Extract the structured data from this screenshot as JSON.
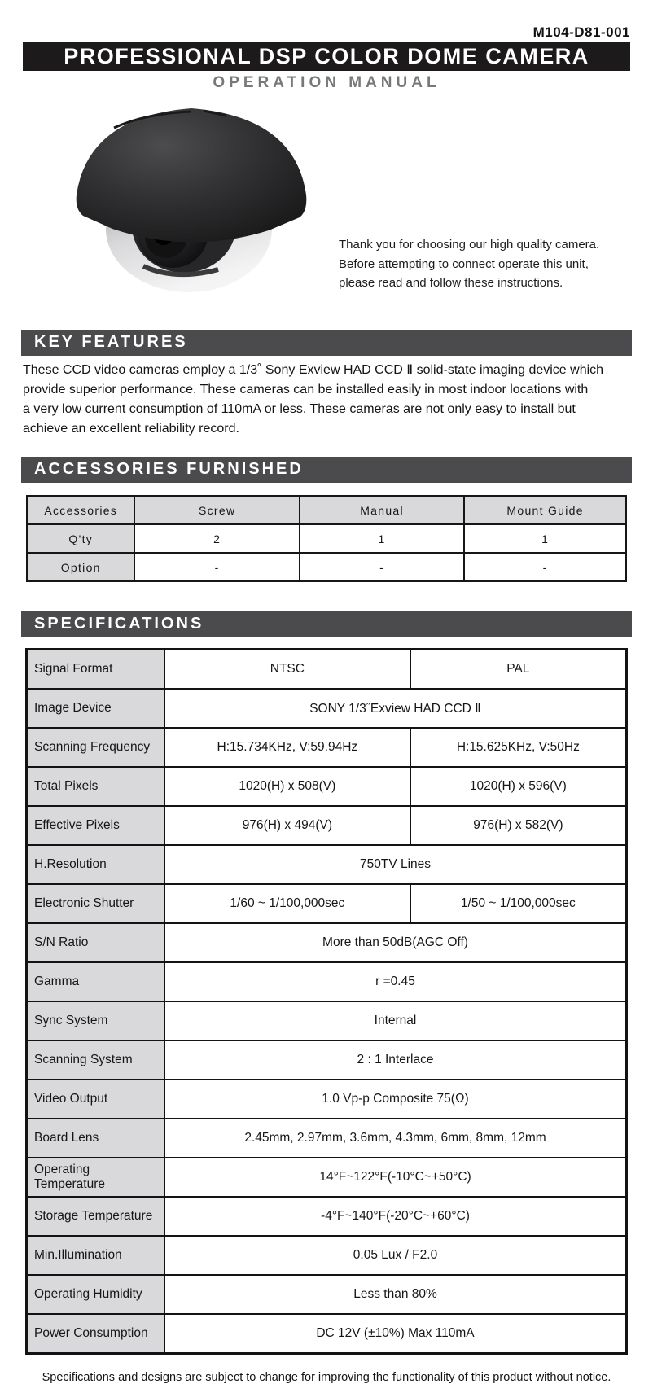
{
  "header": {
    "model_number": "M104-D81-001",
    "title": "PROFESSIONAL DSP COLOR DOME CAMERA",
    "subtitle": "OPERATION MANUAL"
  },
  "intro": {
    "lines": [
      "Thank you for choosing our high quality camera.",
      "Before attempting to connect operate this unit,",
      "please read and follow these instructions."
    ]
  },
  "key_features": {
    "heading": "KEY FEATURES",
    "lines": [
      "These CCD video cameras employ a 1/3˚ Sony Exview HAD CCD Ⅱ  solid-state imaging device which",
      "provide superior performance. These cameras can be installed easily in most indoor locations with",
      "a very low current consumption of 110mA or less. These cameras are not only easy to install but",
      "achieve an excellent reliability record."
    ]
  },
  "accessories": {
    "heading": "ACCESSORIES FURNISHED",
    "columns": [
      "Accessories",
      "Screw",
      "Manual",
      "Mount Guide"
    ],
    "rows": [
      {
        "label": "Q'ty",
        "values": [
          "2",
          "1",
          "1"
        ]
      },
      {
        "label": "Option",
        "values": [
          "-",
          "-",
          "-"
        ]
      }
    ]
  },
  "specifications": {
    "heading": "SPECIFICATIONS",
    "columns": {
      "label": "",
      "ntsc": "NTSC",
      "pal": "PAL"
    },
    "rows": [
      {
        "label": "Signal Format",
        "ntsc": "NTSC",
        "pal": "PAL"
      },
      {
        "label": "Image Device",
        "value": "SONY 1/3˝Exview HAD CCD Ⅱ"
      },
      {
        "label": "Scanning Frequency",
        "ntsc": "H:15.734KHz, V:59.94Hz",
        "pal": "H:15.625KHz, V:50Hz"
      },
      {
        "label": "Total Pixels",
        "ntsc": "1020(H) x 508(V)",
        "pal": "1020(H) x 596(V)"
      },
      {
        "label": "Effective Pixels",
        "ntsc": "976(H) x 494(V)",
        "pal": "976(H) x 582(V)"
      },
      {
        "label": "H.Resolution",
        "value": "750TV Lines"
      },
      {
        "label": "Electronic Shutter",
        "ntsc": "1/60 ~ 1/100,000sec",
        "pal": "1/50 ~ 1/100,000sec"
      },
      {
        "label": "S/N Ratio",
        "value": "More than 50dB(AGC Off)"
      },
      {
        "label": "Gamma",
        "value": "r =0.45"
      },
      {
        "label": "Sync System",
        "value": "Internal"
      },
      {
        "label": "Scanning System",
        "value": "2 : 1 Interlace"
      },
      {
        "label": "Video Output",
        "value": "1.0 Vp-p Composite 75(Ω)"
      },
      {
        "label": "Board Lens",
        "value": "2.45mm, 2.97mm, 3.6mm, 4.3mm, 6mm, 8mm, 12mm"
      },
      {
        "label": "Operating Temperature",
        "value": "14°F~122°F(-10°C~+50°C)"
      },
      {
        "label": "Storage Temperature",
        "value": "-4°F~140°F(-20°C~+60°C)"
      },
      {
        "label": "Min.Illumination",
        "value": "0.05 Lux / F2.0"
      },
      {
        "label": "Operating Humidity",
        "value": "Less than 80%"
      },
      {
        "label": "Power Consumption",
        "value": "DC 12V (±10%) Max 110mA"
      }
    ]
  },
  "footer": {
    "note": "Specifications and designs are subject to change for improving the functionality of this product without notice."
  },
  "colors": {
    "banner_black": "#1d1a1b",
    "section_banner_gray": "#4b4b4d",
    "table_cell_gray": "#d9d9db",
    "subtitle_gray": "#77787a"
  }
}
